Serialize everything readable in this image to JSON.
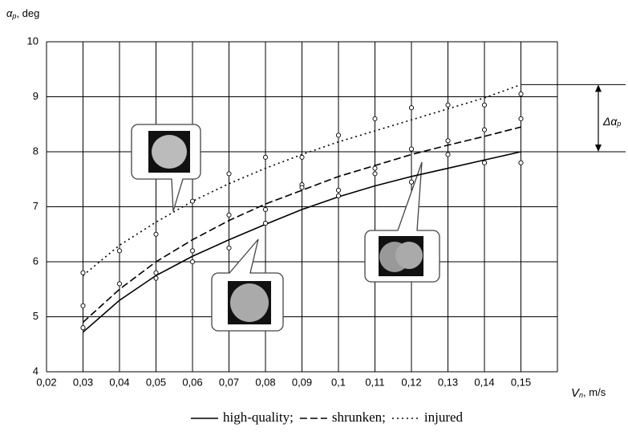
{
  "chart_data": {
    "type": "line",
    "y_label": "α",
    "y_label_sub": "p",
    "y_label_unit": ", deg",
    "x_label": "V",
    "x_label_sub": "n",
    "x_label_unit": ", m/s",
    "delta_label": "Δα",
    "delta_label_sub": "p",
    "legend_separator": ";",
    "xlim": [
      0.02,
      0.16
    ],
    "ylim": [
      4,
      10
    ],
    "xticks": [
      {
        "value": 0.02,
        "label": "0,02"
      },
      {
        "value": 0.03,
        "label": "0,03"
      },
      {
        "value": 0.04,
        "label": "0,04"
      },
      {
        "value": 0.05,
        "label": "0,05"
      },
      {
        "value": 0.06,
        "label": "0,06"
      },
      {
        "value": 0.07,
        "label": "0,07"
      },
      {
        "value": 0.08,
        "label": "0,08"
      },
      {
        "value": 0.09,
        "label": "0,09"
      },
      {
        "value": 0.1,
        "label": "0,1"
      },
      {
        "value": 0.11,
        "label": "0,11"
      },
      {
        "value": 0.12,
        "label": "0,12"
      },
      {
        "value": 0.13,
        "label": "0,13"
      },
      {
        "value": 0.14,
        "label": "0,14"
      },
      {
        "value": 0.15,
        "label": "0,15"
      }
    ],
    "yticks": [
      4,
      5,
      6,
      7,
      8,
      9,
      10
    ],
    "grid": true,
    "x": [
      0.03,
      0.04,
      0.05,
      0.06,
      0.07,
      0.08,
      0.09,
      0.1,
      0.11,
      0.12,
      0.13,
      0.14,
      0.15
    ],
    "series": [
      {
        "name": "high-quality",
        "color": "#000000",
        "line_style": "solid",
        "values": [
          4.72,
          5.3,
          5.75,
          6.1,
          6.4,
          6.68,
          6.95,
          7.18,
          7.38,
          7.55,
          7.7,
          7.85,
          8.0
        ]
      },
      {
        "name": "shrunken",
        "color": "#000000",
        "line_style": "dashed",
        "values": [
          4.9,
          5.5,
          6.0,
          6.4,
          6.75,
          7.05,
          7.3,
          7.55,
          7.75,
          7.95,
          8.12,
          8.28,
          8.45
        ]
      },
      {
        "name": "injured",
        "color": "#000000",
        "line_style": "dotted",
        "values": [
          5.75,
          6.3,
          6.72,
          7.1,
          7.42,
          7.7,
          7.95,
          8.18,
          8.38,
          8.58,
          8.78,
          8.98,
          9.22
        ]
      }
    ],
    "points": {
      "x": [
        0.03,
        0.03,
        0.03,
        0.04,
        0.04,
        0.05,
        0.05,
        0.05,
        0.06,
        0.06,
        0.06,
        0.07,
        0.07,
        0.07,
        0.08,
        0.08,
        0.08,
        0.09,
        0.09,
        0.09,
        0.1,
        0.1,
        0.1,
        0.11,
        0.11,
        0.11,
        0.12,
        0.12,
        0.12,
        0.13,
        0.13,
        0.13,
        0.14,
        0.14,
        0.14,
        0.15,
        0.15,
        0.15
      ],
      "y": [
        5.8,
        5.2,
        4.8,
        6.2,
        5.6,
        6.5,
        5.8,
        5.7,
        7.1,
        6.2,
        6.0,
        7.6,
        6.85,
        6.25,
        7.9,
        6.95,
        6.7,
        7.9,
        7.4,
        7.35,
        8.3,
        7.3,
        7.2,
        8.6,
        7.7,
        7.6,
        8.8,
        8.05,
        7.45,
        8.85,
        8.2,
        7.95,
        8.85,
        8.4,
        7.8,
        9.05,
        8.6,
        7.8
      ]
    }
  }
}
